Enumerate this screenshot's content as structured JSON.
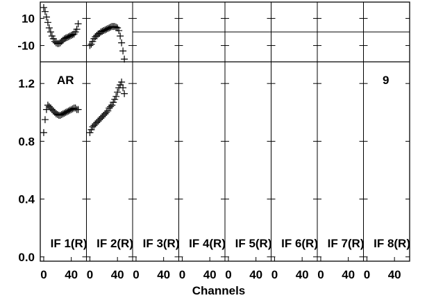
{
  "chart_data": {
    "type": "scatter",
    "xlabel": "Channels",
    "marker": "plus",
    "color": "#000000",
    "panels": [
      "IF 1(R)",
      "IF 2(R)",
      "IF 3(R)",
      "IF 4(R)",
      "IF 5(R)",
      "IF 6(R)",
      "IF 7(R)",
      "IF 8(R)"
    ],
    "x_ticks": [
      "0",
      "40"
    ],
    "xlim": [
      -5,
      62
    ],
    "phase_plot": {
      "yticks": [
        10,
        -10
      ],
      "ytick_labels": [
        "10",
        "-10"
      ],
      "ylim": [
        -22,
        22
      ],
      "reference_line": 0
    },
    "amplitude_plot": {
      "yticks": [
        0.0,
        0.4,
        0.8,
        1.2
      ],
      "ytick_labels": [
        "0.0",
        "0.4",
        "0.8",
        "1.2"
      ],
      "ylim": [
        -0.03,
        1.35
      ]
    },
    "annotations": {
      "left": "AR",
      "right": "9"
    },
    "series": [
      {
        "panel": "IF 1(R)",
        "phase": [
          [
            0,
            18
          ],
          [
            2,
            15
          ],
          [
            4,
            11
          ],
          [
            6,
            7
          ],
          [
            8,
            3
          ],
          [
            10,
            0
          ],
          [
            12,
            -3
          ],
          [
            14,
            -5
          ],
          [
            16,
            -7
          ],
          [
            18,
            -8
          ],
          [
            20,
            -8.5
          ],
          [
            22,
            -8.5
          ],
          [
            24,
            -8
          ],
          [
            26,
            -7
          ],
          [
            28,
            -6
          ],
          [
            30,
            -5
          ],
          [
            32,
            -4.5
          ],
          [
            34,
            -4
          ],
          [
            36,
            -3.5
          ],
          [
            38,
            -3
          ],
          [
            40,
            -2.5
          ],
          [
            42,
            -2
          ],
          [
            44,
            -1.5
          ],
          [
            46,
            0
          ],
          [
            48,
            2
          ],
          [
            50,
            6
          ]
        ],
        "amplitude": [
          [
            0,
            0.86
          ],
          [
            2,
            0.95
          ],
          [
            4,
            1.02
          ],
          [
            6,
            1.05
          ],
          [
            8,
            1.04
          ],
          [
            10,
            1.03
          ],
          [
            12,
            1.02
          ],
          [
            14,
            1.01
          ],
          [
            16,
            1.0
          ],
          [
            18,
            0.99
          ],
          [
            20,
            0.985
          ],
          [
            22,
            0.98
          ],
          [
            24,
            0.98
          ],
          [
            26,
            0.985
          ],
          [
            28,
            0.99
          ],
          [
            30,
            0.995
          ],
          [
            32,
            1.0
          ],
          [
            34,
            1.005
          ],
          [
            36,
            1.01
          ],
          [
            38,
            1.015
          ],
          [
            40,
            1.02
          ],
          [
            42,
            1.025
          ],
          [
            44,
            1.03
          ],
          [
            46,
            1.03
          ],
          [
            48,
            1.02
          ],
          [
            50,
            1.02
          ]
        ]
      },
      {
        "panel": "IF 2(R)",
        "phase": [
          [
            0,
            -10
          ],
          [
            2,
            -9
          ],
          [
            4,
            -7
          ],
          [
            6,
            -5
          ],
          [
            8,
            -3.5
          ],
          [
            10,
            -2.5
          ],
          [
            12,
            -1.5
          ],
          [
            14,
            -1
          ],
          [
            16,
            0
          ],
          [
            18,
            0.5
          ],
          [
            20,
            1
          ],
          [
            22,
            1.5
          ],
          [
            24,
            2
          ],
          [
            26,
            2.5
          ],
          [
            28,
            3
          ],
          [
            30,
            3.5
          ],
          [
            32,
            4
          ],
          [
            34,
            4
          ],
          [
            36,
            4
          ],
          [
            38,
            3.5
          ],
          [
            40,
            3
          ],
          [
            42,
            1
          ],
          [
            44,
            -3
          ],
          [
            46,
            -8
          ],
          [
            48,
            -14
          ],
          [
            50,
            -20
          ]
        ],
        "amplitude": [
          [
            0,
            0.86
          ],
          [
            2,
            0.88
          ],
          [
            4,
            0.9
          ],
          [
            6,
            0.91
          ],
          [
            8,
            0.92
          ],
          [
            10,
            0.93
          ],
          [
            12,
            0.94
          ],
          [
            14,
            0.95
          ],
          [
            16,
            0.96
          ],
          [
            18,
            0.97
          ],
          [
            20,
            0.98
          ],
          [
            22,
            0.99
          ],
          [
            24,
            1.0
          ],
          [
            26,
            1.01
          ],
          [
            28,
            1.03
          ],
          [
            30,
            1.04
          ],
          [
            32,
            1.05
          ],
          [
            34,
            1.07
          ],
          [
            36,
            1.09
          ],
          [
            38,
            1.11
          ],
          [
            40,
            1.14
          ],
          [
            42,
            1.17
          ],
          [
            44,
            1.19
          ],
          [
            46,
            1.21
          ],
          [
            48,
            1.17
          ],
          [
            50,
            1.13
          ]
        ]
      }
    ]
  }
}
